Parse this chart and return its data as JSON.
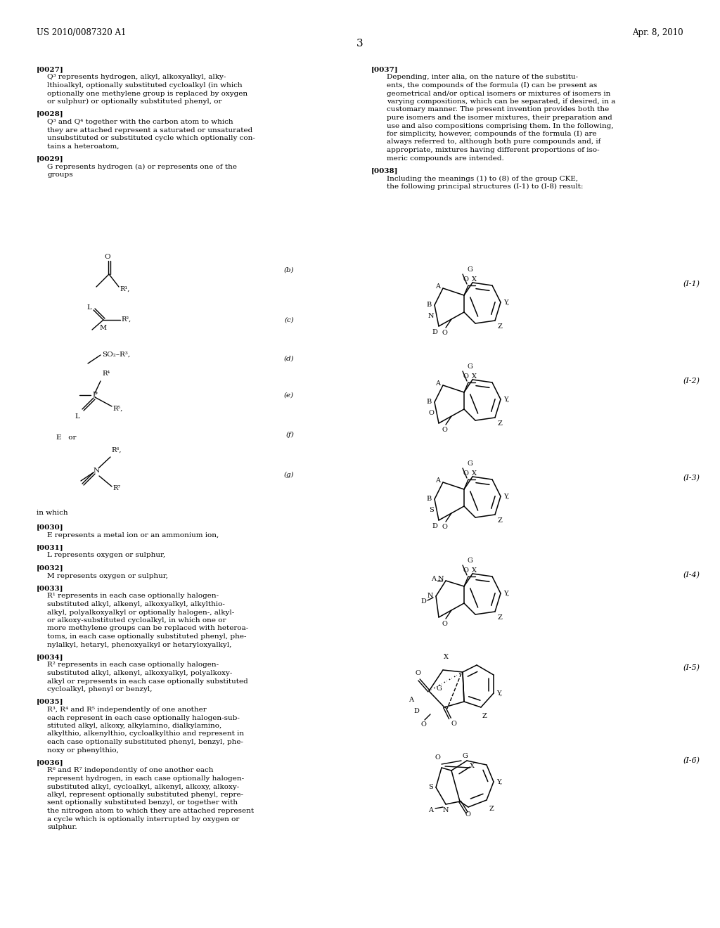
{
  "bg": "#ffffff",
  "header_left": "US 2010/0087320 A1",
  "header_right": "Apr. 8, 2010",
  "page_num": "3"
}
